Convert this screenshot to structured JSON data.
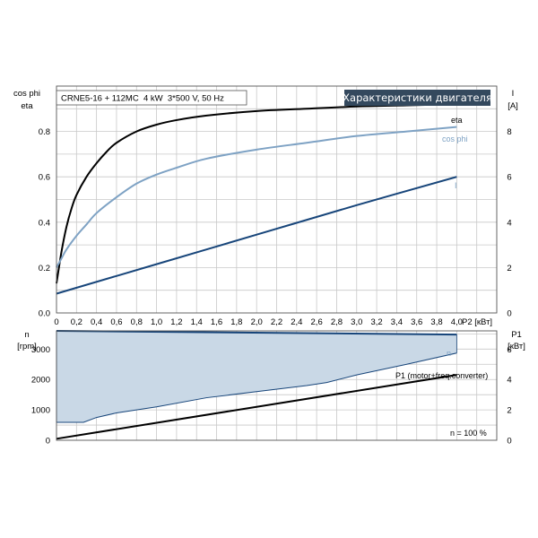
{
  "colors": {
    "eta": "#000000",
    "cosphi": "#7ea2c4",
    "current": "#17457a",
    "fill": "#c9d8e6",
    "p1": "#000000",
    "title_bg": "#34495e",
    "title_fg": "#ffffff"
  },
  "header": {
    "pump_info": "CRNE5-16 + 112MC  4 kW  3*500 V, 50 Hz",
    "title": "Характеристики двигателя"
  },
  "chart_data": [
    {
      "type": "line",
      "axes": {
        "left_label_1": "cos phi",
        "left_label_2": "eta",
        "right_label_1": "I",
        "right_label_2": "[A]",
        "x_label": "P2 [кВт]",
        "xlim": [
          0,
          4.4
        ],
        "ylim_left": [
          0,
          1.0
        ],
        "ylim_right": [
          0,
          10
        ]
      },
      "x_ticks": [
        "0",
        "0,2",
        "0,4",
        "0,6",
        "0,8",
        "1,0",
        "1,2",
        "1,4",
        "1,6",
        "1,8",
        "2,0",
        "2,2",
        "2,4",
        "2,6",
        "2,8",
        "3,0",
        "3,2",
        "3,4",
        "3,6",
        "3,8",
        "4,0"
      ],
      "y_ticks_left": [
        "0.0",
        "0.2",
        "0.4",
        "0.6",
        "0.8"
      ],
      "y_ticks_right": [
        "0",
        "2",
        "4",
        "6",
        "8"
      ],
      "grid": true,
      "series": [
        {
          "name": "eta",
          "axis": "left",
          "x": [
            0.0,
            0.05,
            0.1,
            0.15,
            0.2,
            0.3,
            0.4,
            0.5,
            0.6,
            0.8,
            1.0,
            1.2,
            1.5,
            2.0,
            2.5,
            3.0,
            3.5,
            4.0
          ],
          "y": [
            0.13,
            0.27,
            0.38,
            0.46,
            0.52,
            0.6,
            0.66,
            0.71,
            0.75,
            0.8,
            0.83,
            0.85,
            0.87,
            0.89,
            0.9,
            0.91,
            0.915,
            0.92
          ]
        },
        {
          "name": "cos phi",
          "axis": "left",
          "x": [
            0.0,
            0.05,
            0.1,
            0.2,
            0.3,
            0.4,
            0.6,
            0.8,
            1.0,
            1.2,
            1.5,
            2.0,
            2.5,
            3.0,
            3.5,
            4.0
          ],
          "y": [
            0.2,
            0.24,
            0.28,
            0.34,
            0.39,
            0.44,
            0.51,
            0.57,
            0.61,
            0.64,
            0.68,
            0.72,
            0.75,
            0.78,
            0.8,
            0.82
          ]
        },
        {
          "name": "I",
          "axis": "right",
          "x": [
            0.0,
            1.0,
            2.0,
            3.0,
            4.0
          ],
          "y": [
            0.85,
            2.15,
            3.45,
            4.75,
            6.0
          ]
        }
      ]
    },
    {
      "type": "area",
      "axes": {
        "left_label_1": "n",
        "left_label_2": "[rpm]",
        "right_label_1": "P1",
        "right_label_2": "[кВт]",
        "xlim": [
          0,
          4.4
        ],
        "ylim_left": [
          0,
          3600
        ],
        "ylim_right": [
          0,
          7.2
        ]
      },
      "y_ticks_left": [
        "0",
        "1000",
        "2000",
        "3000"
      ],
      "y_ticks_right": [
        "0",
        "2",
        "4",
        "6"
      ],
      "grid": true,
      "annotation": "n = 100 %",
      "series": [
        {
          "name": "n",
          "axis": "left",
          "role": "upper",
          "x": [
            0.0,
            4.0
          ],
          "y": [
            3600,
            3480
          ]
        },
        {
          "name": "",
          "axis": "left",
          "role": "lower",
          "x": [
            0.0,
            0.27,
            0.4,
            0.6,
            1.0,
            1.5,
            2.0,
            2.5,
            2.7,
            3.0,
            3.5,
            4.0
          ],
          "y": [
            590,
            590,
            750,
            900,
            1100,
            1400,
            1600,
            1800,
            1900,
            2150,
            2500,
            2870
          ]
        },
        {
          "name": "P1 (motor+freq.converter)",
          "axis": "right",
          "x": [
            0.0,
            4.0
          ],
          "y": [
            0.1,
            4.3
          ]
        }
      ]
    }
  ]
}
